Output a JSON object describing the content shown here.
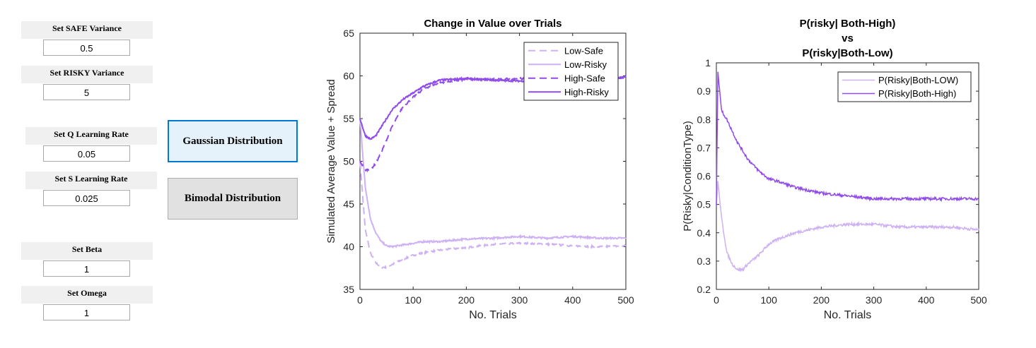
{
  "controls": {
    "safe_variance": {
      "label": "Set SAFE Variance",
      "value": "0.5"
    },
    "risky_variance": {
      "label": "Set RISKY Variance",
      "value": "5"
    },
    "q_learning_rate": {
      "label": "Set Q Learning Rate",
      "value": "0.05"
    },
    "s_learning_rate": {
      "label": "Set S Learning Rate",
      "value": "0.025"
    },
    "beta": {
      "label": "Set Beta",
      "value": "1"
    },
    "omega": {
      "label": "Set Omega",
      "value": "1"
    },
    "gaussian_button": "Gaussian Distribution",
    "bimodal_button": "Bimodal Distribution"
  },
  "colors": {
    "low": "#cdb1f2",
    "high": "#8f4cea",
    "axis": "#262626"
  },
  "chart_data": [
    {
      "type": "line",
      "title": "Change in Value over Trials",
      "xlabel": "No. Trials",
      "ylabel": "Simulated Average Value + Spread",
      "xlim": [
        0,
        500
      ],
      "ylim": [
        35,
        65
      ],
      "xticks": [
        "0",
        "100",
        "200",
        "300",
        "400",
        "500"
      ],
      "yticks": [
        "35",
        "40",
        "45",
        "50",
        "55",
        "60",
        "65"
      ],
      "grid": false,
      "legend_position": "top-right",
      "x": [
        0,
        10,
        20,
        30,
        40,
        50,
        60,
        80,
        100,
        120,
        150,
        200,
        250,
        300,
        350,
        400,
        450,
        500
      ],
      "series": [
        {
          "name": "Low-Safe",
          "style": "dashed",
          "color": "low",
          "values": [
            50,
            42.0,
            39.2,
            38.1,
            37.6,
            37.6,
            37.9,
            38.5,
            39.0,
            39.3,
            39.6,
            39.9,
            40.3,
            40.4,
            40.3,
            40.1,
            40.0,
            40.1
          ]
        },
        {
          "name": "Low-Risky",
          "style": "solid",
          "color": "low",
          "values": [
            55,
            47.0,
            43.2,
            41.6,
            40.6,
            40.1,
            40.0,
            40.2,
            40.4,
            40.6,
            40.6,
            40.9,
            41.0,
            41.2,
            41.0,
            41.2,
            41.0,
            41.0
          ]
        },
        {
          "name": "High-Safe",
          "style": "dashed",
          "color": "high",
          "values": [
            50,
            49.0,
            49.0,
            49.8,
            51.0,
            52.5,
            54.0,
            56.3,
            57.5,
            58.5,
            59.2,
            59.6,
            59.6,
            59.7,
            59.7,
            59.8,
            59.7,
            59.8
          ]
        },
        {
          "name": "High-Risky",
          "style": "solid",
          "color": "high",
          "values": [
            55,
            53.0,
            52.6,
            53.0,
            54.0,
            55.0,
            56.0,
            57.2,
            58.0,
            58.8,
            59.5,
            59.7,
            59.5,
            59.4,
            59.5,
            59.8,
            59.6,
            59.9
          ]
        }
      ]
    },
    {
      "type": "line",
      "title": "P(risky| Both-High)\nvs\nP(risky|Both-Low)",
      "xlabel": "No. Trials",
      "ylabel": "P(Risky|ConditionType)",
      "xlim": [
        0,
        500
      ],
      "ylim": [
        0.2,
        1
      ],
      "xticks": [
        "0",
        "100",
        "200",
        "300",
        "400",
        "500"
      ],
      "yticks": [
        "0.2",
        "0.3",
        "0.4",
        "0.5",
        "0.6",
        "0.7",
        "0.8",
        "0.9",
        "1"
      ],
      "grid": false,
      "legend_position": "top-right",
      "x": [
        0,
        3,
        10,
        20,
        30,
        40,
        50,
        60,
        80,
        100,
        120,
        150,
        200,
        250,
        300,
        350,
        400,
        450,
        500
      ],
      "series": [
        {
          "name": "P(Risky|Both-LOW)",
          "color": "low",
          "values": [
            0.5,
            0.58,
            0.45,
            0.33,
            0.29,
            0.27,
            0.27,
            0.29,
            0.32,
            0.36,
            0.38,
            0.4,
            0.42,
            0.43,
            0.43,
            0.42,
            0.42,
            0.42,
            0.41
          ]
        },
        {
          "name": "P(Risky|Both-High)",
          "color": "high",
          "values": [
            0.5,
            0.97,
            0.83,
            0.8,
            0.76,
            0.72,
            0.69,
            0.66,
            0.62,
            0.59,
            0.58,
            0.56,
            0.54,
            0.53,
            0.52,
            0.52,
            0.52,
            0.52,
            0.52
          ]
        }
      ]
    }
  ]
}
